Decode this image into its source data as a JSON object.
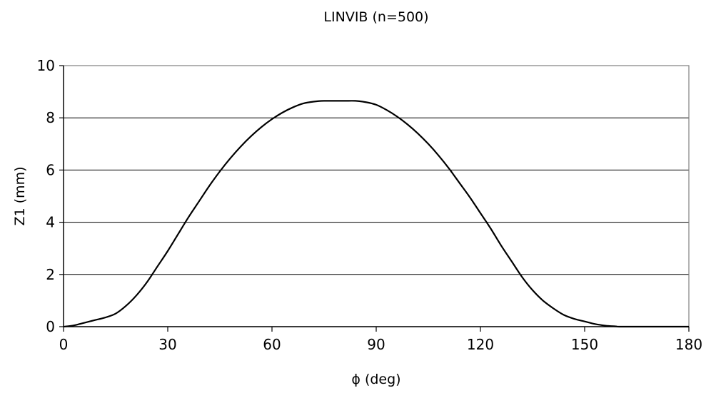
{
  "chart_data": {
    "type": "line",
    "title": "LINVIB (n=500)",
    "xlabel": "ϕ (deg)",
    "ylabel": "Z1 (mm)",
    "xlim": [
      0,
      180
    ],
    "ylim": [
      0,
      10
    ],
    "xticks": [
      0,
      30,
      60,
      90,
      120,
      150,
      180
    ],
    "yticks": [
      0,
      2,
      4,
      6,
      8,
      10
    ],
    "grid": "horizontal",
    "legend": "none",
    "line_color": "#000000",
    "series": [
      {
        "x": [
          0,
          3,
          6,
          9,
          12,
          15,
          18,
          21,
          24,
          27,
          30,
          33,
          36,
          39,
          42,
          45,
          48,
          51,
          54,
          57,
          60,
          63,
          66,
          69,
          72,
          75,
          78,
          81,
          84,
          87,
          90,
          93,
          96,
          99,
          102,
          105,
          108,
          111,
          114,
          117,
          120,
          123,
          126,
          129,
          132,
          135,
          138,
          141,
          144,
          147,
          150,
          153,
          156,
          159,
          160,
          165,
          170,
          175,
          180
        ],
        "y": [
          0,
          0.05,
          0.15,
          0.25,
          0.35,
          0.5,
          0.8,
          1.2,
          1.7,
          2.3,
          2.9,
          3.55,
          4.2,
          4.8,
          5.4,
          5.95,
          6.45,
          6.9,
          7.3,
          7.65,
          7.95,
          8.2,
          8.4,
          8.55,
          8.62,
          8.65,
          8.65,
          8.65,
          8.65,
          8.6,
          8.5,
          8.3,
          8.05,
          7.75,
          7.4,
          7.0,
          6.55,
          6.05,
          5.5,
          4.95,
          4.35,
          3.75,
          3.1,
          2.5,
          1.9,
          1.4,
          1.0,
          0.7,
          0.45,
          0.3,
          0.2,
          0.1,
          0.04,
          0.01,
          0,
          0,
          0,
          0,
          0
        ]
      }
    ]
  }
}
